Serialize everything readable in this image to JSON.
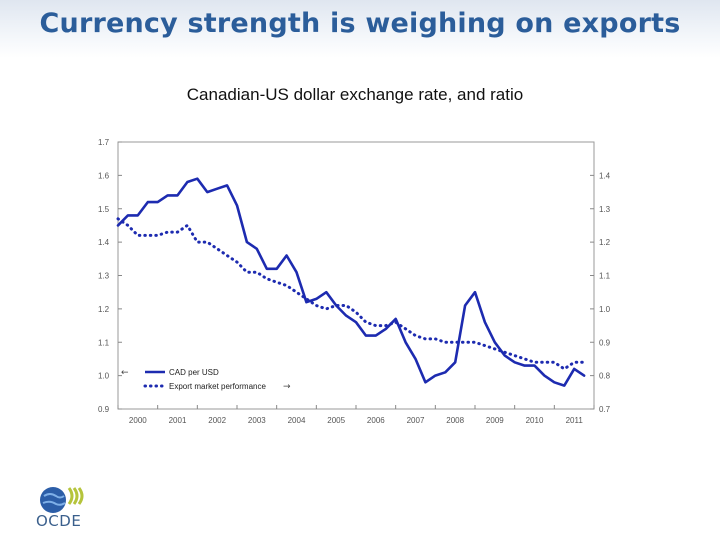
{
  "slide": {
    "title": "Currency strength is weighing on exports",
    "subtitle": "Canadian-US dollar exchange rate, and ratio"
  },
  "logo": {
    "text": "OCDE"
  },
  "chart_data": {
    "type": "line",
    "x_ticks": [
      "2000",
      "2001",
      "2002",
      "2003",
      "2004",
      "2005",
      "2006",
      "2007",
      "2008",
      "2009",
      "2010",
      "2011"
    ],
    "xlim": [
      2000,
      2012
    ],
    "y_left": {
      "lim": [
        0.9,
        1.7
      ],
      "ticks": [
        "0.9",
        "1.0",
        "1.1",
        "1.2",
        "1.3",
        "1.4",
        "1.5",
        "1.6",
        "1.7"
      ]
    },
    "y_right": {
      "lim": [
        0.7,
        1.5
      ],
      "ticks": [
        "0.7",
        "0.8",
        "0.9",
        "1.0",
        "1.1",
        "1.2",
        "1.3",
        "1.4"
      ]
    },
    "legend": {
      "placement": "bottom-left",
      "entries": [
        {
          "label": "CAD per USD",
          "arrow": "←"
        },
        {
          "label": "Export market performance",
          "arrow": "→"
        }
      ]
    },
    "series": [
      {
        "name": "CAD per USD",
        "axis": "left",
        "style": "solid",
        "color": "#1d2bb0",
        "x": [
          2000.0,
          2000.25,
          2000.5,
          2000.75,
          2001.0,
          2001.25,
          2001.5,
          2001.75,
          2002.0,
          2002.25,
          2002.5,
          2002.75,
          2003.0,
          2003.25,
          2003.5,
          2003.75,
          2004.0,
          2004.25,
          2004.5,
          2004.75,
          2005.0,
          2005.25,
          2005.5,
          2005.75,
          2006.0,
          2006.25,
          2006.5,
          2006.75,
          2007.0,
          2007.25,
          2007.5,
          2007.75,
          2008.0,
          2008.25,
          2008.5,
          2008.75,
          2009.0,
          2009.25,
          2009.5,
          2009.75,
          2010.0,
          2010.25,
          2010.5,
          2010.75,
          2011.0,
          2011.25,
          2011.5,
          2011.75
        ],
        "values": [
          1.45,
          1.48,
          1.48,
          1.52,
          1.52,
          1.54,
          1.54,
          1.58,
          1.59,
          1.55,
          1.56,
          1.57,
          1.51,
          1.4,
          1.38,
          1.32,
          1.32,
          1.36,
          1.31,
          1.22,
          1.23,
          1.25,
          1.21,
          1.18,
          1.16,
          1.12,
          1.12,
          1.14,
          1.17,
          1.1,
          1.05,
          0.98,
          1.0,
          1.01,
          1.04,
          1.21,
          1.25,
          1.16,
          1.1,
          1.06,
          1.04,
          1.03,
          1.03,
          1.0,
          0.98,
          0.97,
          1.02,
          1.0
        ]
      },
      {
        "name": "Export market performance",
        "axis": "right",
        "style": "dotted",
        "color": "#1d2bb0",
        "x": [
          2000.0,
          2000.25,
          2000.5,
          2000.75,
          2001.0,
          2001.25,
          2001.5,
          2001.75,
          2002.0,
          2002.25,
          2002.5,
          2002.75,
          2003.0,
          2003.25,
          2003.5,
          2003.75,
          2004.0,
          2004.25,
          2004.5,
          2004.75,
          2005.0,
          2005.25,
          2005.5,
          2005.75,
          2006.0,
          2006.25,
          2006.5,
          2006.75,
          2007.0,
          2007.25,
          2007.5,
          2007.75,
          2008.0,
          2008.25,
          2008.5,
          2008.75,
          2009.0,
          2009.25,
          2009.5,
          2009.75,
          2010.0,
          2010.25,
          2010.5,
          2010.75,
          2011.0,
          2011.25,
          2011.5,
          2011.75
        ],
        "values": [
          1.27,
          1.25,
          1.22,
          1.22,
          1.22,
          1.23,
          1.23,
          1.25,
          1.2,
          1.2,
          1.18,
          1.16,
          1.14,
          1.11,
          1.11,
          1.09,
          1.08,
          1.07,
          1.05,
          1.03,
          1.01,
          1.0,
          1.01,
          1.01,
          0.99,
          0.96,
          0.95,
          0.95,
          0.96,
          0.94,
          0.92,
          0.91,
          0.91,
          0.9,
          0.9,
          0.9,
          0.9,
          0.89,
          0.88,
          0.87,
          0.86,
          0.85,
          0.84,
          0.84,
          0.84,
          0.82,
          0.84,
          0.84
        ]
      }
    ]
  }
}
